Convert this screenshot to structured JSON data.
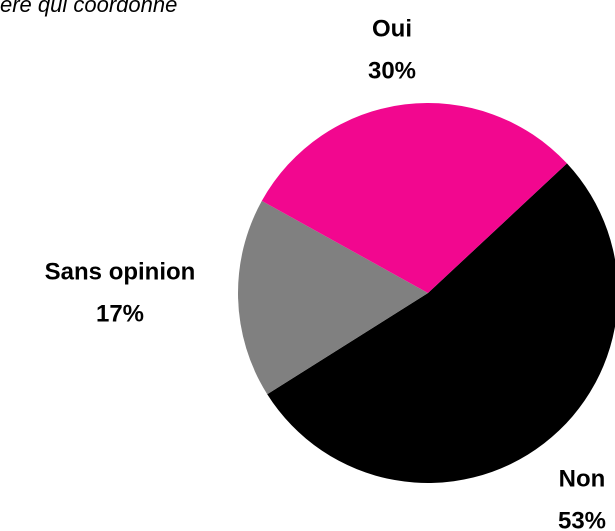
{
  "chart_data": {
    "type": "pie",
    "title": "ère qui coordonne",
    "categories": [
      "Non",
      "Sans opinion",
      "Oui"
    ],
    "values": [
      53,
      17,
      30
    ],
    "value_labels": [
      "53%",
      "17%",
      "30%"
    ],
    "colors": [
      "#000000",
      "#808080",
      "#f2078f"
    ]
  }
}
